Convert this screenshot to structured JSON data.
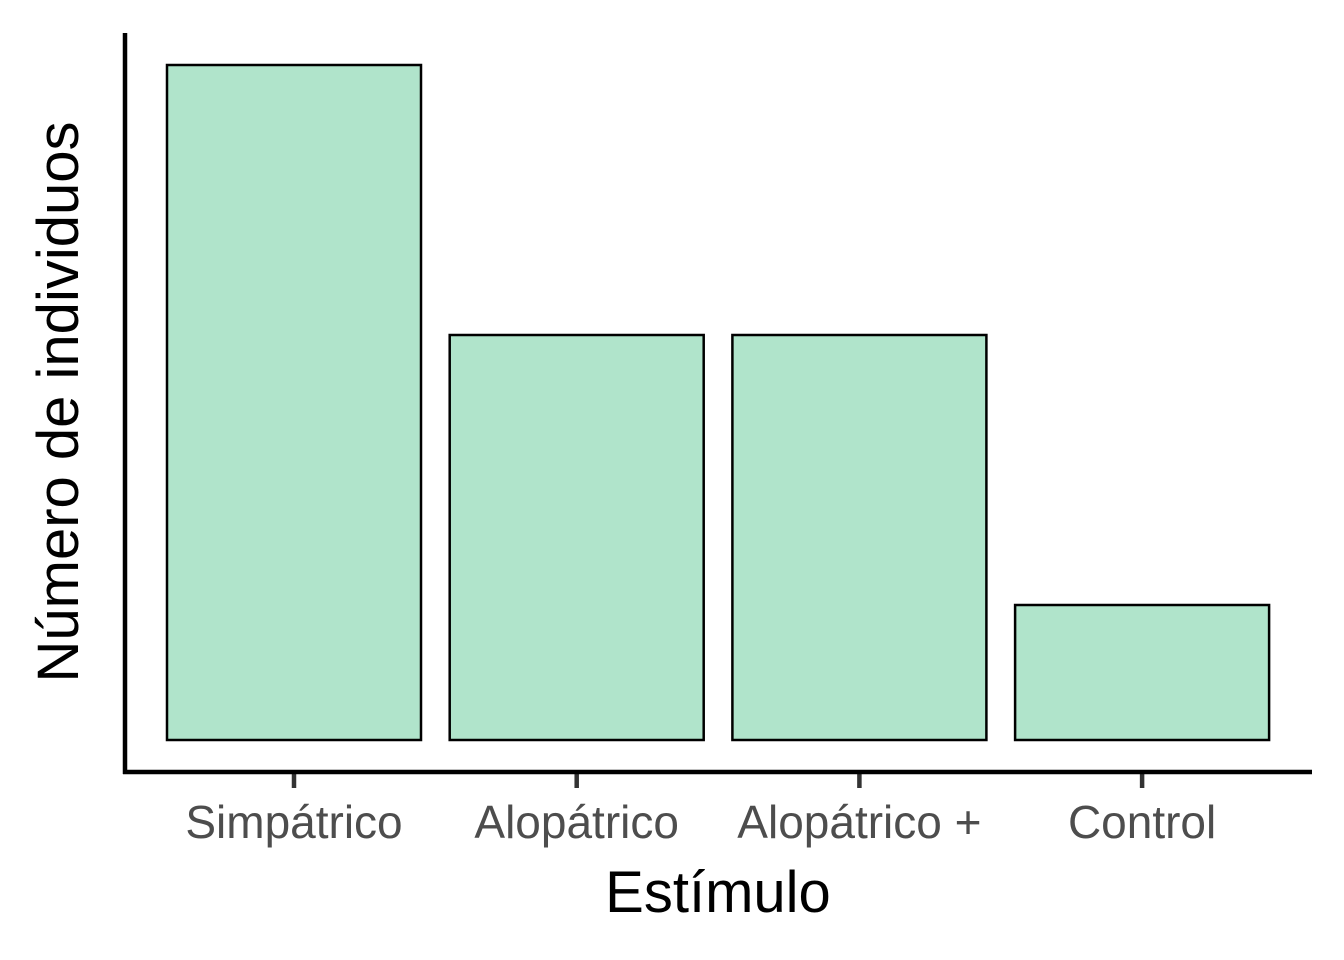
{
  "chart_data": {
    "type": "bar",
    "categories": [
      "Simpátrico",
      "Alopátrico",
      "Alopátrico +",
      "Control"
    ],
    "values": [
      5,
      3,
      3,
      1
    ],
    "title": "",
    "xlabel": "Estímulo",
    "ylabel": "Número de individuos",
    "ylim": [
      0,
      5
    ],
    "y_ticks_shown": false,
    "grid": false,
    "legend": "none",
    "colors": {
      "bar_fill": "#b0e4cb",
      "bar_stroke": "#000000",
      "tick_label": "#4d4d4d"
    }
  }
}
